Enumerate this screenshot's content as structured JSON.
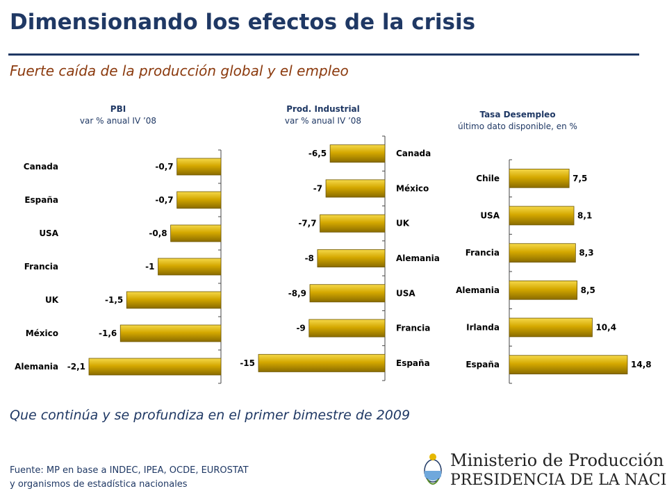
{
  "header": {
    "title": "Dimensionando los efectos de la crisis",
    "subtitle": "Fuerte caída de la producción global y el empleo"
  },
  "footer": {
    "caption": "Que continúa y se profundiza en el primer bimestre de 2009",
    "source_line1": "Fuente: MP en base a INDEC, IPEA, OCDE, EUROSTAT",
    "source_line2": "y organismos de estadística nacionales",
    "logo_line1": "Ministerio de Producción",
    "logo_line2": "PRESIDENCIA DE LA NACION"
  },
  "colors": {
    "bar_fill": "#d4a800",
    "bar_stroke": "#6b5400",
    "title": "#1f3864",
    "subtitle": "#8b3a0e"
  },
  "chart_data": [
    {
      "type": "bar",
      "orientation": "horizontal",
      "title": "PBI",
      "subtitle": "var % anual IV ’08",
      "categories": [
        "Canada",
        "España",
        "USA",
        "Francia",
        "UK",
        "México",
        "Alemania"
      ],
      "values": [
        -0.7,
        -0.7,
        -0.8,
        -1,
        -1.5,
        -1.6,
        -2.1
      ],
      "value_labels": [
        "-0,7",
        "-0,7",
        "-0,8",
        "-1",
        "-1,5",
        "-1,6",
        "-2,1"
      ],
      "xlim": [
        -2.1,
        0
      ]
    },
    {
      "type": "bar",
      "orientation": "horizontal",
      "title": "Prod. Industrial",
      "subtitle": "var % anual IV ’08",
      "categories": [
        "Canada",
        "México",
        "UK",
        "Alemania",
        "USA",
        "Francia",
        "España"
      ],
      "values": [
        -6.5,
        -7,
        -7.7,
        -8,
        -8.9,
        -9,
        -15
      ],
      "value_labels": [
        "-6,5",
        "-7",
        "-7,7",
        "-8",
        "-8,9",
        "-9",
        "-15"
      ],
      "xlim": [
        -15,
        0
      ]
    },
    {
      "type": "bar",
      "orientation": "horizontal",
      "title": "Tasa Desempleo",
      "subtitle": "último dato disponible, en %",
      "categories": [
        "Chile",
        "USA",
        "Francia",
        "Alemania",
        "Irlanda",
        "España"
      ],
      "values": [
        7.5,
        8.1,
        8.3,
        8.5,
        10.4,
        14.8
      ],
      "value_labels": [
        "7,5",
        "8,1",
        "8,3",
        "8,5",
        "10,4",
        "14,8"
      ],
      "xlim": [
        0,
        14.8
      ]
    }
  ]
}
